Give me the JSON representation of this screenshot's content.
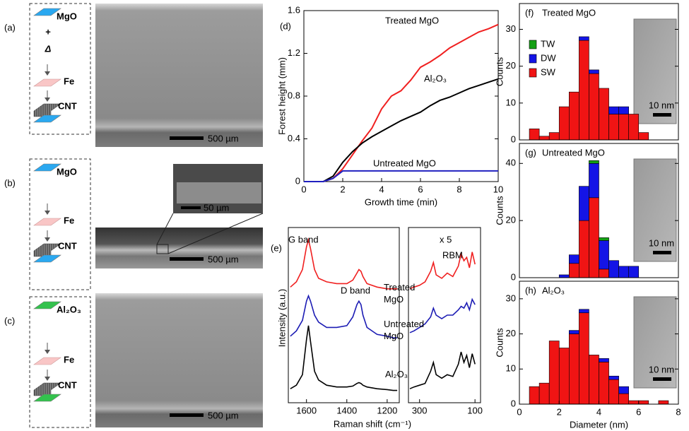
{
  "panels": [
    {
      "label": "(a)",
      "substrate": "MgO",
      "treatment": [
        "+",
        "Δ"
      ],
      "catalyst": "Fe",
      "product": "CNT",
      "scale_bar": "500 µm"
    },
    {
      "label": "(b)",
      "substrate": "MgO",
      "catalyst": "Fe",
      "product": "CNT",
      "scale_bar": "500 µm",
      "inset_scale_bar": "50 µm"
    },
    {
      "label": "(c)",
      "substrate": "Al₂O₃",
      "catalyst": "Fe",
      "product": "CNT",
      "scale_bar": "500 µm"
    }
  ],
  "chart_data": [
    {
      "type": "line",
      "panel_label": "(d)",
      "xlabel": "Growth time (min)",
      "ylabel": "Forest height (mm)",
      "x": [
        0,
        0.5,
        1,
        1.5,
        2,
        2.5,
        3,
        3.5,
        4,
        4.5,
        5,
        5.5,
        6,
        6.5,
        7,
        7.5,
        8,
        8.5,
        9,
        9.5,
        10
      ],
      "xlim": [
        0,
        10
      ],
      "xticks": [
        0,
        2,
        4,
        6,
        8,
        10
      ],
      "ylim": [
        0,
        1.6
      ],
      "yticks": [
        0,
        0.4,
        0.8,
        1.2,
        1.6
      ],
      "series": [
        {
          "name": "Treated MgO",
          "color": "#f02020",
          "values": [
            0,
            0,
            0,
            0.03,
            0.12,
            0.25,
            0.38,
            0.5,
            0.68,
            0.8,
            0.85,
            0.95,
            1.07,
            1.12,
            1.18,
            1.25,
            1.3,
            1.35,
            1.4,
            1.43,
            1.47
          ]
        },
        {
          "name": "Al₂O₃",
          "color": "#000000",
          "values": [
            0,
            0,
            0,
            0.05,
            0.18,
            0.28,
            0.36,
            0.42,
            0.47,
            0.52,
            0.57,
            0.61,
            0.65,
            0.71,
            0.76,
            0.79,
            0.83,
            0.87,
            0.9,
            0.93,
            0.96
          ]
        },
        {
          "name": "Untreated MgO",
          "color": "#2020c0",
          "values": [
            0,
            0,
            0,
            0.03,
            0.1,
            0.1,
            0.1,
            0.1,
            0.1,
            0.1,
            0.1,
            0.1,
            0.1,
            0.1,
            0.1,
            0.1,
            0.1,
            0.1,
            0.1,
            0.1,
            0.1
          ]
        }
      ]
    },
    {
      "type": "spectra",
      "panel_label": "(e)",
      "xlabel": "Raman shift (cm⁻¹)",
      "ylabel": "Intensity (a.u.)",
      "annotations": [
        "G band",
        "D band",
        "x 5",
        "RBM"
      ],
      "ylim": [
        0,
        10
      ],
      "sections": [
        {
          "xlim": [
            1690,
            1140
          ],
          "xticks": [
            1600,
            1400,
            1200
          ],
          "x": [
            1680,
            1650,
            1620,
            1600,
            1590,
            1580,
            1560,
            1540,
            1500,
            1450,
            1400,
            1370,
            1350,
            1340,
            1330,
            1320,
            1300,
            1250,
            1200,
            1170,
            1150
          ],
          "series": [
            {
              "name": "Treated MgO",
              "color": "#f02020",
              "values": [
                6.6,
                6.9,
                7.6,
                8.9,
                9.3,
                8.8,
                7.6,
                7.1,
                6.9,
                6.8,
                6.8,
                7.0,
                7.4,
                7.6,
                7.5,
                7.2,
                6.8,
                6.6,
                6.5,
                6.5,
                6.5
              ]
            },
            {
              "name": "Untreated MgO",
              "color": "#1c1cb4",
              "values": [
                3.8,
                4.1,
                4.7,
                5.8,
                6.1,
                5.8,
                5.0,
                4.6,
                4.3,
                4.3,
                4.4,
                4.9,
                5.6,
                5.8,
                5.6,
                5.0,
                4.3,
                3.9,
                3.8,
                3.7,
                3.7
              ]
            },
            {
              "name": "Al₂O₃",
              "color": "#000000",
              "values": [
                0.8,
                1.0,
                1.6,
                3.6,
                4.4,
                3.5,
                1.8,
                1.3,
                1.0,
                0.9,
                0.9,
                0.95,
                1.1,
                1.15,
                1.1,
                1.0,
                0.9,
                0.8,
                0.75,
                0.7,
                0.7
              ]
            }
          ]
        },
        {
          "xlim": [
            340,
            80
          ],
          "xticks": [
            300,
            100
          ],
          "x": [
            335,
            320,
            300,
            280,
            260,
            250,
            240,
            220,
            200,
            180,
            160,
            150,
            140,
            130,
            120,
            110,
            100
          ],
          "series": [
            {
              "color": "#f02020",
              "values": [
                6.5,
                6.6,
                6.7,
                6.9,
                7.5,
                8.0,
                7.3,
                7.1,
                7.4,
                7.2,
                7.8,
                8.5,
                8.1,
                8.3,
                7.7,
                8.6,
                7.9
              ]
            },
            {
              "color": "#1c1cb4",
              "values": [
                4.0,
                4.1,
                4.3,
                4.5,
                4.9,
                5.4,
                5.0,
                4.8,
                5.0,
                5.0,
                5.3,
                5.5,
                5.4,
                5.7,
                5.3,
                5.9,
                5.6
              ]
            },
            {
              "color": "#000000",
              "values": [
                0.8,
                0.9,
                1.0,
                1.1,
                1.8,
                2.3,
                1.6,
                1.4,
                1.6,
                1.5,
                2.2,
                2.9,
                2.3,
                2.7,
                2.0,
                2.8,
                2.2
              ]
            }
          ]
        }
      ]
    },
    {
      "type": "histogram",
      "panel_label": "(f)",
      "title": "Treated MgO",
      "ylabel": "Counts",
      "inset_scale_bar": "10 nm",
      "bins": [
        0.5,
        1,
        1.5,
        2,
        2.5,
        3,
        3.5,
        4,
        4.5,
        5,
        5.5,
        6,
        6.5
      ],
      "xlim": [
        0,
        8
      ],
      "ylim": [
        0,
        37
      ],
      "yticks": [
        0,
        10,
        20,
        30
      ],
      "series": [
        {
          "name": "SW",
          "color": "#f01414",
          "values": [
            3,
            1,
            2,
            9,
            13,
            27,
            18,
            14,
            7,
            7,
            7,
            2
          ]
        },
        {
          "name": "DW",
          "color": "#1414e6",
          "values": [
            0,
            0,
            0,
            0,
            0,
            1,
            1,
            0,
            2,
            2,
            0,
            0
          ]
        },
        {
          "name": "TW",
          "color": "#14a014",
          "values": [
            0,
            0,
            0,
            0,
            0,
            0,
            0,
            0,
            0,
            0,
            0,
            0
          ]
        }
      ]
    },
    {
      "type": "histogram",
      "panel_label": "(g)",
      "title": "Untreated MgO",
      "ylabel": "Counts",
      "inset_scale_bar": "10 nm",
      "bins": [
        2,
        2.5,
        3,
        3.5,
        4,
        4.5,
        5,
        5.5,
        6
      ],
      "xlim": [
        0,
        8
      ],
      "ylim": [
        0,
        47
      ],
      "yticks": [
        0,
        20,
        40
      ],
      "series": [
        {
          "color": "#f01414",
          "values": [
            0,
            5,
            20,
            28,
            3,
            0,
            0,
            0
          ]
        },
        {
          "color": "#1414e6",
          "values": [
            1,
            3,
            12,
            12,
            10,
            6,
            4,
            4
          ]
        },
        {
          "color": "#14a014",
          "values": [
            0,
            0,
            0,
            1,
            1,
            0,
            0,
            0
          ]
        }
      ]
    },
    {
      "type": "histogram",
      "panel_label": "(h)",
      "title": "Al₂O₃",
      "ylabel": "Counts",
      "xlabel": "Diameter (nm)",
      "inset_scale_bar": "10 nm",
      "bins": [
        0.5,
        1,
        1.5,
        2,
        2.5,
        3,
        3.5,
        4,
        4.5,
        5,
        5.5,
        6,
        6.5,
        7,
        7.5
      ],
      "xlim": [
        0,
        8
      ],
      "xticks": [
        0,
        2,
        4,
        6,
        8
      ],
      "ylim": [
        0,
        35
      ],
      "yticks": [
        0,
        10,
        20,
        30
      ],
      "series": [
        {
          "color": "#f01414",
          "values": [
            5,
            6,
            18,
            16,
            20,
            26,
            14,
            12,
            7,
            3,
            1,
            1,
            0,
            1
          ]
        },
        {
          "color": "#1414e6",
          "values": [
            0,
            0,
            0,
            0,
            1,
            1,
            0,
            1,
            1,
            2,
            0,
            0,
            0,
            0
          ]
        },
        {
          "color": "#14a014",
          "values": [
            0,
            0,
            0,
            0,
            0,
            0,
            0,
            0,
            0,
            0,
            0,
            0,
            0,
            0
          ]
        }
      ]
    }
  ]
}
